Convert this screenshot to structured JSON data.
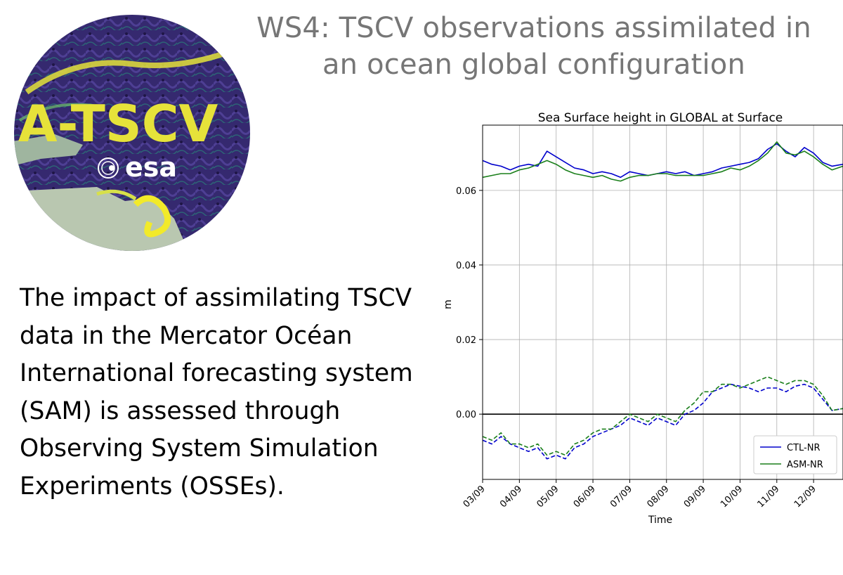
{
  "slide": {
    "title_line1": "WS4: TSCV observations assimilated in",
    "title_line2": "an ocean global configuration",
    "body_text": "The impact of assimilating TSCV data in the Mercator Océan International forecasting system (SAM) is assessed through Observing System Simulation Experiments (OSSEs)."
  },
  "logo": {
    "name": "A-TSCV",
    "agency": "esa"
  },
  "colors": {
    "ctl": "#0000cc",
    "asm": "#1a7f1a",
    "title_gray": "#767676",
    "logo_ocean": "#3a2a78",
    "logo_text": "#e6e23a"
  },
  "chart_data": {
    "type": "line",
    "title": "Sea Surface height in GLOBAL at Surface",
    "xlabel": "Time",
    "ylabel": "m",
    "ylim": [
      -0.0175,
      0.0775
    ],
    "yticks": [
      "0.00",
      "0.02",
      "0.04",
      "0.06"
    ],
    "ytick_values": [
      0.0,
      0.02,
      0.04,
      0.06
    ],
    "xlim": [
      0,
      9.8
    ],
    "xticks": [
      "03/09",
      "04/09",
      "05/09",
      "06/09",
      "07/09",
      "08/09",
      "09/09",
      "10/09",
      "11/09",
      "12/09"
    ],
    "xtick_values": [
      0,
      1,
      2,
      3,
      4,
      5,
      6,
      7,
      8,
      9
    ],
    "grid": true,
    "zero_line": true,
    "legend_position": "lower-right",
    "legend": [
      "CTL-NR",
      "ASM-NR"
    ],
    "series": [
      {
        "name": "CTL-NR",
        "style": "solid",
        "x": [
          0,
          0.25,
          0.5,
          0.75,
          1.0,
          1.25,
          1.5,
          1.75,
          2.0,
          2.25,
          2.5,
          2.75,
          3.0,
          3.25,
          3.5,
          3.75,
          4.0,
          4.25,
          4.5,
          4.75,
          5.0,
          5.25,
          5.5,
          5.75,
          6.0,
          6.25,
          6.5,
          6.75,
          7.0,
          7.25,
          7.5,
          7.75,
          8.0,
          8.25,
          8.5,
          8.75,
          9.0,
          9.25,
          9.5,
          9.8
        ],
        "y": [
          0.068,
          0.067,
          0.0665,
          0.0655,
          0.0665,
          0.067,
          0.0665,
          0.0705,
          0.069,
          0.0675,
          0.066,
          0.0655,
          0.0645,
          0.065,
          0.0645,
          0.0635,
          0.065,
          0.0645,
          0.064,
          0.0645,
          0.065,
          0.0645,
          0.065,
          0.064,
          0.0645,
          0.065,
          0.066,
          0.0665,
          0.067,
          0.0675,
          0.0685,
          0.071,
          0.0725,
          0.0705,
          0.069,
          0.0715,
          0.07,
          0.0675,
          0.0665,
          0.067
        ]
      },
      {
        "name": "ASM-NR",
        "style": "solid",
        "x": [
          0,
          0.25,
          0.5,
          0.75,
          1.0,
          1.25,
          1.5,
          1.75,
          2.0,
          2.25,
          2.5,
          2.75,
          3.0,
          3.25,
          3.5,
          3.75,
          4.0,
          4.25,
          4.5,
          4.75,
          5.0,
          5.25,
          5.5,
          5.75,
          6.0,
          6.25,
          6.5,
          6.75,
          7.0,
          7.25,
          7.5,
          7.75,
          8.0,
          8.25,
          8.5,
          8.75,
          9.0,
          9.25,
          9.5,
          9.8
        ],
        "y": [
          0.0635,
          0.064,
          0.0645,
          0.0645,
          0.0655,
          0.066,
          0.067,
          0.068,
          0.067,
          0.0655,
          0.0645,
          0.064,
          0.0635,
          0.064,
          0.063,
          0.0625,
          0.0635,
          0.064,
          0.064,
          0.0645,
          0.0645,
          0.064,
          0.064,
          0.064,
          0.064,
          0.0645,
          0.065,
          0.066,
          0.0655,
          0.0665,
          0.068,
          0.07,
          0.073,
          0.07,
          0.0695,
          0.0705,
          0.069,
          0.067,
          0.0655,
          0.0665
        ]
      },
      {
        "name": "",
        "style": "dashed",
        "x": [
          0,
          0.25,
          0.5,
          0.75,
          1.0,
          1.25,
          1.5,
          1.75,
          2.0,
          2.25,
          2.5,
          2.75,
          3.0,
          3.25,
          3.5,
          3.75,
          4.0,
          4.25,
          4.5,
          4.75,
          5.0,
          5.25,
          5.5,
          5.75,
          6.0,
          6.25,
          6.5,
          6.75,
          7.0,
          7.25,
          7.5,
          7.75,
          8.0,
          8.25,
          8.5,
          8.75,
          9.0,
          9.25,
          9.5,
          9.8
        ],
        "y": [
          -0.007,
          -0.008,
          -0.006,
          -0.008,
          -0.009,
          -0.01,
          -0.009,
          -0.012,
          -0.011,
          -0.012,
          -0.009,
          -0.008,
          -0.006,
          -0.005,
          -0.004,
          -0.003,
          -0.001,
          -0.002,
          -0.003,
          -0.001,
          -0.002,
          -0.003,
          0.0,
          0.001,
          0.003,
          0.006,
          0.007,
          0.008,
          0.0075,
          0.007,
          0.006,
          0.007,
          0.007,
          0.006,
          0.0075,
          0.008,
          0.007,
          0.004,
          0.001,
          0.0015
        ]
      },
      {
        "name": "",
        "style": "dashed",
        "x": [
          0,
          0.25,
          0.5,
          0.75,
          1.0,
          1.25,
          1.5,
          1.75,
          2.0,
          2.25,
          2.5,
          2.75,
          3.0,
          3.25,
          3.5,
          3.75,
          4.0,
          4.25,
          4.5,
          4.75,
          5.0,
          5.25,
          5.5,
          5.75,
          6.0,
          6.25,
          6.5,
          6.75,
          7.0,
          7.25,
          7.5,
          7.75,
          8.0,
          8.25,
          8.5,
          8.75,
          9.0,
          9.25,
          9.5,
          9.8
        ],
        "y": [
          -0.006,
          -0.007,
          -0.005,
          -0.008,
          -0.008,
          -0.009,
          -0.008,
          -0.011,
          -0.01,
          -0.011,
          -0.008,
          -0.007,
          -0.005,
          -0.004,
          -0.004,
          -0.002,
          0.0,
          -0.001,
          -0.002,
          0.0,
          -0.001,
          -0.002,
          0.001,
          0.003,
          0.006,
          0.006,
          0.008,
          0.008,
          0.007,
          0.008,
          0.009,
          0.01,
          0.009,
          0.008,
          0.009,
          0.009,
          0.008,
          0.005,
          0.001,
          0.0015
        ]
      }
    ]
  }
}
